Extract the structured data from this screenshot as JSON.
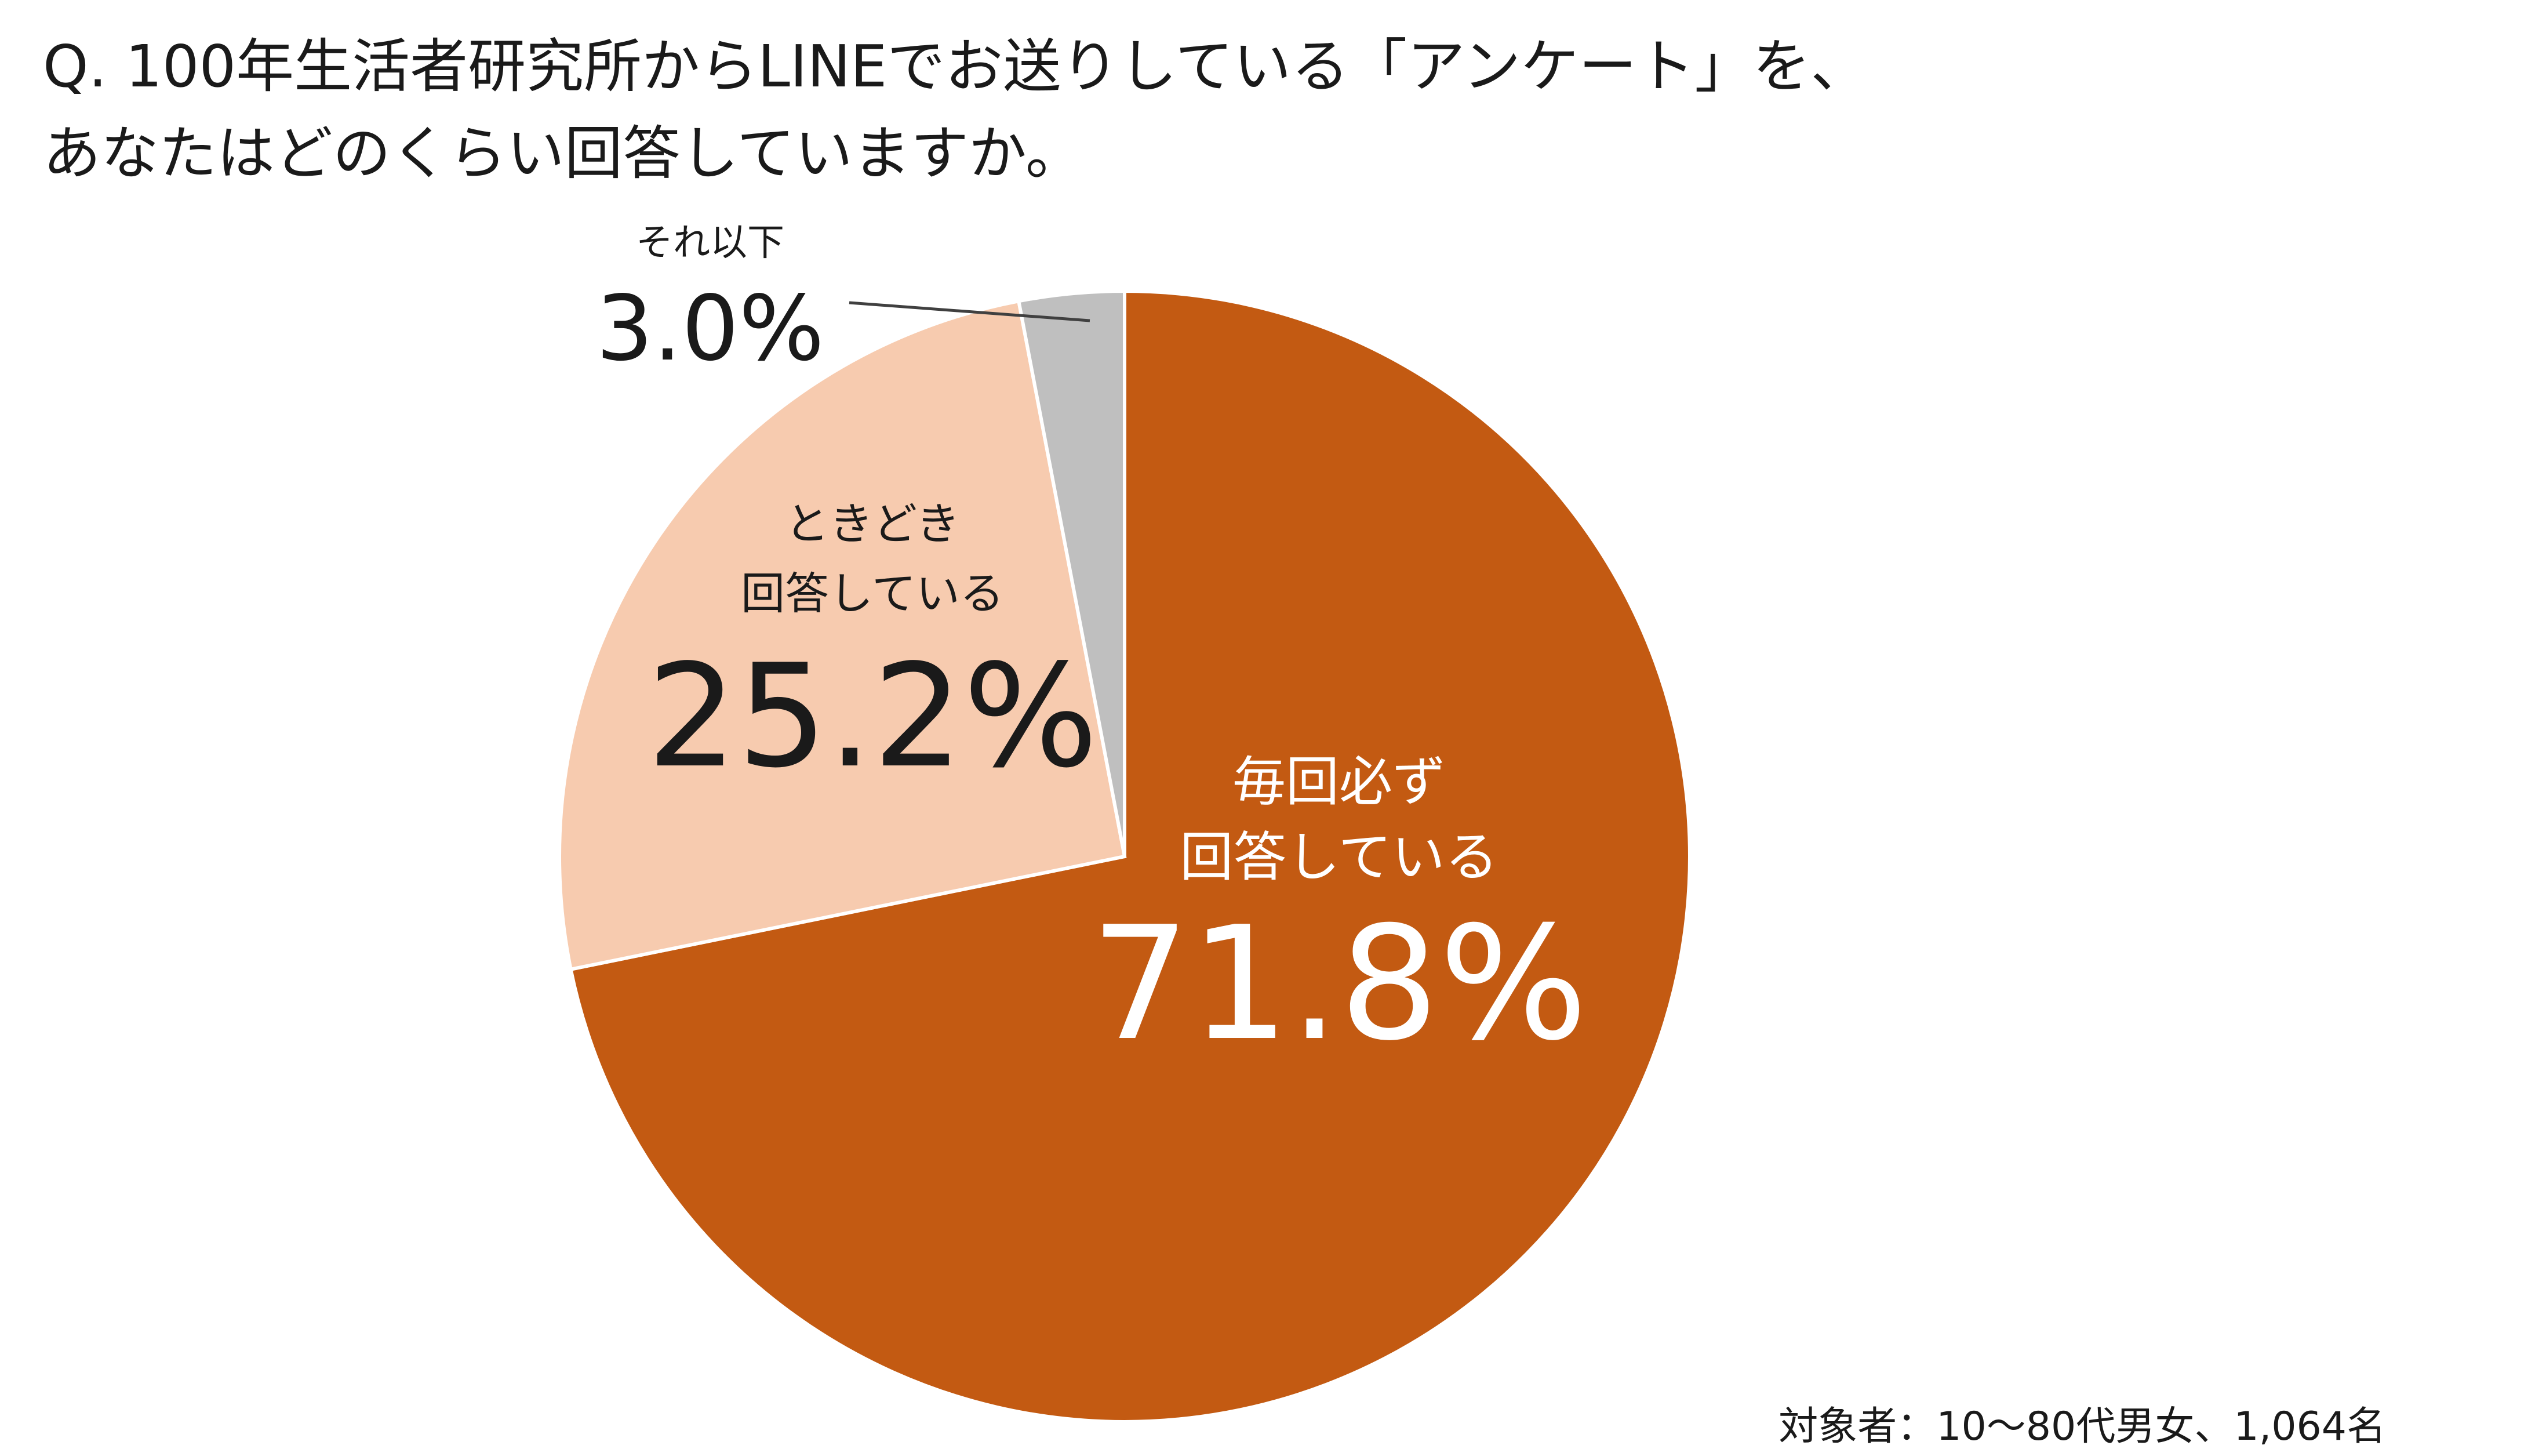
{
  "question": {
    "line1": "Q. 100年生活者研究所からLINEでお送りしている「アンケート」を、",
    "line2": "あなたはどのくらい回答していますか。"
  },
  "chart_data": {
    "type": "pie",
    "slices": [
      {
        "label_lines": [
          "毎回必ず",
          "回答している"
        ],
        "value": 71.8,
        "value_label": "71.8%",
        "color": "#c35a12",
        "label_color": "#ffffff"
      },
      {
        "label_lines": [
          "ときどき",
          "回答している"
        ],
        "value": 25.2,
        "value_label": "25.2%",
        "color": "#f7cbaf",
        "label_color": "#1a1a1a"
      },
      {
        "label_lines": [
          "それ以下"
        ],
        "value": 3.0,
        "value_label": "3.0%",
        "color": "#bfbfbf",
        "label_color": "#1a1a1a"
      }
    ],
    "start": "12 o'clock",
    "direction": "clockwise"
  },
  "footnote": "対象者：10～80代男女、1,064名"
}
